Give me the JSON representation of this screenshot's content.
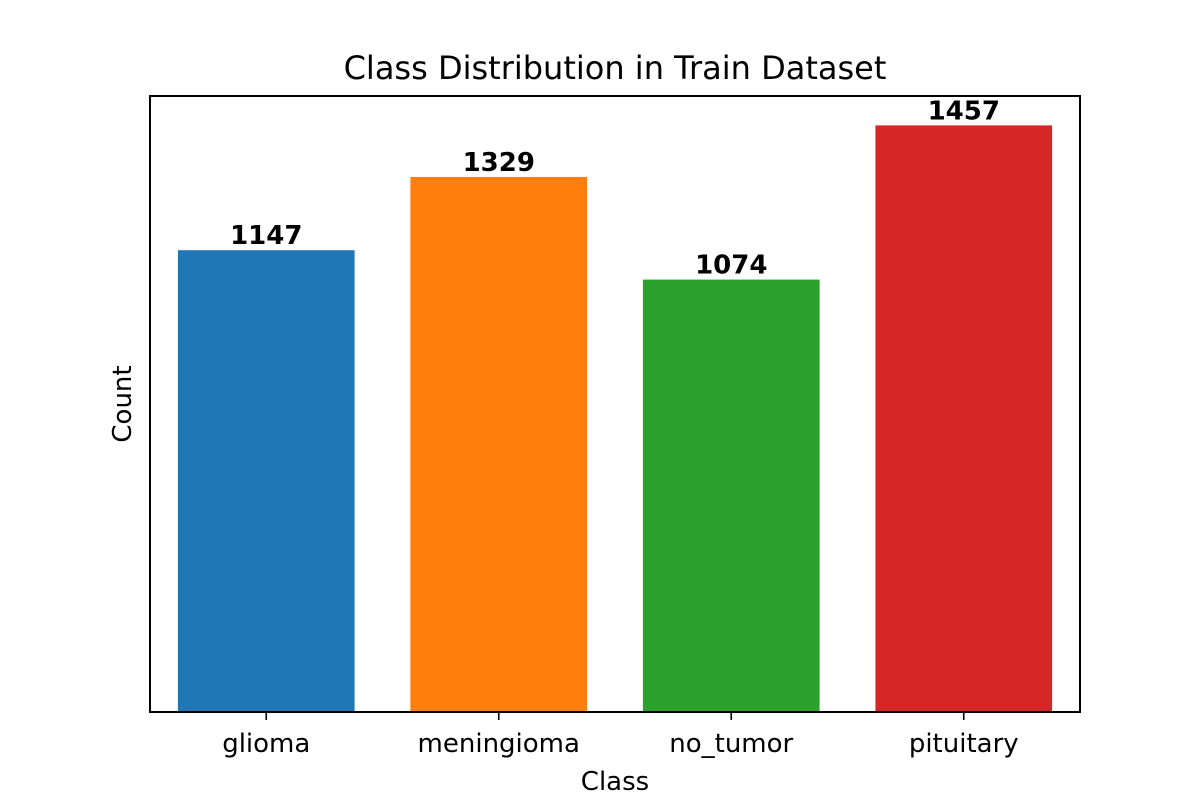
{
  "chart_data": {
    "type": "bar",
    "title": "Class Distribution in Train Dataset",
    "xlabel": "Class",
    "ylabel": "Count",
    "categories": [
      "glioma",
      "meningioma",
      "no_tumor",
      "pituitary"
    ],
    "values": [
      1147,
      1329,
      1074,
      1457
    ],
    "value_labels": [
      "1147",
      "1329",
      "1074",
      "1457"
    ],
    "colors": [
      "#1f77b4",
      "#ff7f0e",
      "#2ca02c",
      "#d62728"
    ],
    "ylim": [
      0,
      1530
    ],
    "y_ticks_visible": false,
    "grid": false,
    "legend": "none"
  }
}
